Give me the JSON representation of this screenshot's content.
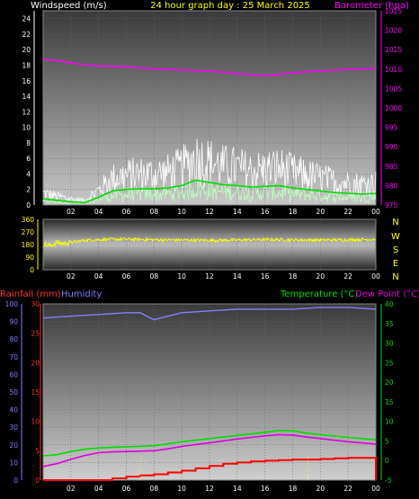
{
  "header": {
    "left_label": "Windspeed (m/s)",
    "title": "24 hour graph day : 25 March 2025",
    "right_label": "Barometer (hpa)"
  },
  "colors": {
    "wind_left": "#ffffff",
    "title": "#ffff00",
    "barometer": "#ff00ff",
    "direction": "#ffff00",
    "rainfall": "#ff3333",
    "humidity": "#8080ff",
    "temperature": "#00dd00",
    "dewpoint": "#dd00dd"
  },
  "x_ticks": [
    "02",
    "04",
    "06",
    "08",
    "10",
    "12",
    "14",
    "16",
    "18",
    "20",
    "22",
    "00"
  ],
  "wind_panel": {
    "y_left_ticks": [
      "0",
      "2",
      "4",
      "6",
      "8",
      "10",
      "12",
      "14",
      "16",
      "18",
      "20",
      "22",
      "24"
    ],
    "y_right_ticks": [
      "975",
      "980",
      "985",
      "990",
      "995",
      "1000",
      "1005",
      "1010",
      "1015",
      "1020",
      "1025"
    ]
  },
  "direction_panel": {
    "y_ticks": [
      "0",
      "90",
      "180",
      "270",
      "360"
    ],
    "compass": [
      "N",
      "W",
      "S",
      "E",
      "N"
    ]
  },
  "temp_panel": {
    "left_labels": {
      "rainfall": "Rainfall (mm)",
      "humidity": "Humidity"
    },
    "right_labels": {
      "temperature": "Temperature (°C)",
      "dewpoint": "Dew Point (°C)"
    },
    "y_humidity_ticks": [
      "0",
      "10",
      "20",
      "30",
      "40",
      "50",
      "60",
      "70",
      "80",
      "90",
      "100"
    ],
    "y_rain_ticks": [
      "0",
      "5",
      "10",
      "15",
      "20",
      "25",
      "30"
    ],
    "y_temp_ticks": [
      "-5",
      "0",
      "5",
      "10",
      "15",
      "20",
      "25",
      "30",
      "35",
      "40"
    ]
  },
  "chart_data": [
    {
      "type": "line",
      "x_unit": "hour",
      "xlim": [
        0,
        24
      ],
      "ylim_left": [
        0,
        25
      ],
      "ylim_right": [
        975,
        1025
      ],
      "series": [
        {
          "name": "Windspeed (m/s)",
          "axis": "left",
          "x": [
            0,
            1,
            2,
            3,
            4,
            5,
            6,
            7,
            8,
            9,
            10,
            11,
            12,
            13,
            14,
            15,
            16,
            17,
            18,
            19,
            20,
            21,
            22,
            23,
            24
          ],
          "y": [
            0.8,
            0.6,
            0.4,
            0.3,
            1.0,
            1.8,
            2.0,
            2.1,
            2.1,
            2.2,
            2.5,
            3.2,
            2.9,
            2.6,
            2.5,
            2.3,
            2.4,
            2.5,
            2.2,
            2.0,
            1.8,
            1.6,
            1.5,
            1.4,
            1.5
          ]
        },
        {
          "name": "Barometer (hpa)",
          "axis": "right",
          "x": [
            0,
            1,
            2,
            3,
            4,
            5,
            6,
            7,
            8,
            9,
            10,
            11,
            12,
            13,
            14,
            15,
            16,
            17,
            18,
            19,
            20,
            21,
            22,
            23,
            24
          ],
          "y": [
            1012.5,
            1012.2,
            1011.6,
            1011.1,
            1010.8,
            1010.7,
            1010.6,
            1010.3,
            1010.0,
            1009.9,
            1009.8,
            1009.6,
            1009.5,
            1009.2,
            1008.9,
            1008.5,
            1008.3,
            1008.6,
            1009.0,
            1009.3,
            1009.5,
            1009.7,
            1009.9,
            1010.0,
            1010.2
          ]
        }
      ]
    },
    {
      "type": "line",
      "x_unit": "hour",
      "xlim": [
        0,
        24
      ],
      "ylim": [
        0,
        360
      ],
      "series": [
        {
          "name": "Wind direction",
          "x": [
            0,
            0.5,
            1,
            1.5,
            2,
            3,
            4,
            6,
            8,
            10,
            12,
            14,
            16,
            18,
            20,
            22,
            24
          ],
          "y": [
            185,
            170,
            195,
            185,
            195,
            210,
            215,
            218,
            214,
            212,
            210,
            212,
            216,
            213,
            212,
            214,
            218
          ]
        }
      ]
    },
    {
      "type": "line",
      "x_unit": "hour",
      "xlim": [
        0,
        24
      ],
      "ylim_rain": [
        0,
        30
      ],
      "ylim_humidity": [
        0,
        100
      ],
      "ylim_temp": [
        -5,
        40
      ],
      "series": [
        {
          "name": "Humidity",
          "axis": "humidity",
          "x": [
            0,
            2,
            4,
            6,
            7,
            7.5,
            8,
            9,
            10,
            12,
            14,
            16,
            18,
            20,
            22,
            24
          ],
          "y": [
            92,
            93,
            94,
            95,
            95,
            93,
            91,
            93,
            95,
            96,
            97,
            97,
            97,
            98,
            98,
            97
          ]
        },
        {
          "name": "Temperature (°C)",
          "axis": "temp",
          "x": [
            0,
            1,
            2,
            3,
            4,
            5,
            6,
            7,
            8,
            9,
            10,
            11,
            12,
            13,
            14,
            15,
            16,
            17,
            18,
            19,
            20,
            21,
            22,
            23,
            24
          ],
          "y": [
            1.2,
            1.5,
            2.3,
            2.9,
            3.2,
            3.4,
            3.5,
            3.6,
            3.8,
            4.3,
            4.8,
            5.2,
            5.6,
            6.0,
            6.4,
            6.8,
            7.2,
            7.7,
            7.6,
            7.0,
            6.6,
            6.3,
            5.9,
            5.6,
            5.3
          ]
        },
        {
          "name": "Dew Point (°C)",
          "axis": "temp",
          "x": [
            0,
            1,
            2,
            3,
            4,
            5,
            6,
            7,
            8,
            9,
            10,
            11,
            12,
            13,
            14,
            15,
            16,
            17,
            18,
            19,
            20,
            21,
            22,
            23,
            24
          ],
          "y": [
            -1.5,
            -0.8,
            0.3,
            1.3,
            2.0,
            2.2,
            2.3,
            2.4,
            2.5,
            3.0,
            3.6,
            4.1,
            4.5,
            5.0,
            5.5,
            5.9,
            6.3,
            6.6,
            6.5,
            6.0,
            5.6,
            5.2,
            4.8,
            4.5,
            4.2
          ]
        },
        {
          "name": "Rainfall (mm)",
          "axis": "rain",
          "x": [
            0,
            4.5,
            5,
            6,
            7,
            8,
            9,
            10,
            11,
            12,
            13,
            14,
            15,
            16,
            17,
            18,
            19,
            20,
            21,
            22,
            23,
            24
          ],
          "y": [
            0,
            0,
            0.3,
            0.6,
            0.8,
            1.0,
            1.3,
            1.6,
            2.0,
            2.4,
            2.8,
            3.0,
            3.2,
            3.3,
            3.4,
            3.5,
            3.5,
            3.6,
            3.7,
            3.8,
            3.8,
            3.8
          ]
        }
      ]
    }
  ]
}
